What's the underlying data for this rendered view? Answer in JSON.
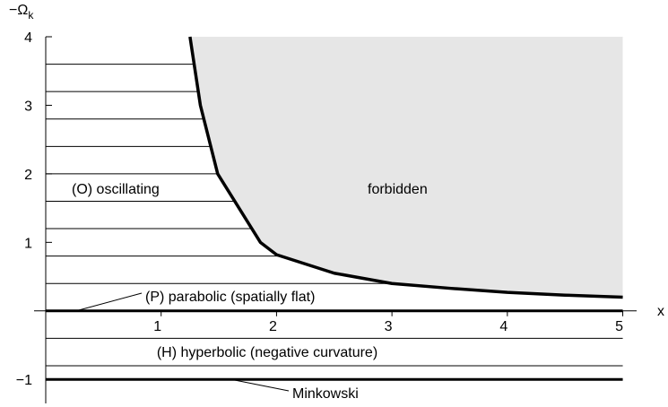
{
  "chart_data": {
    "type": "line",
    "y_label": {
      "symbol": "−Ω",
      "subscript": "k"
    },
    "x_label": "x",
    "xlim": [
      0,
      5.12
    ],
    "ylim": [
      -1.35,
      4
    ],
    "xticks": [
      1,
      2,
      3,
      4,
      5
    ],
    "yticks": [
      {
        "value": -1,
        "label": "−1"
      },
      1,
      2,
      3,
      4
    ],
    "boundary": {
      "x": [
        1.25,
        1.34,
        1.49,
        1.86,
        2,
        2.5,
        3,
        3.5,
        4,
        4.5,
        5
      ],
      "y": [
        4,
        3,
        2,
        1,
        0.82,
        0.55,
        0.4,
        0.33,
        0.27,
        0.23,
        0.2
      ]
    },
    "oscillating_levels": [
      0.4,
      0.8,
      1.2,
      1.6,
      2,
      2.4,
      2.8,
      3.2,
      3.6
    ],
    "hyperbolic_levels": [
      -0.4,
      -0.8
    ],
    "parabolic_level": 0,
    "minkowski_level": -1,
    "forbidden_color": "#e6e6e6",
    "annotations": [
      "(O) oscillating",
      "forbidden",
      "(P) parabolic (spatially flat)",
      "(H) hyperbolic (negative curvature)",
      "Minkowski"
    ]
  }
}
